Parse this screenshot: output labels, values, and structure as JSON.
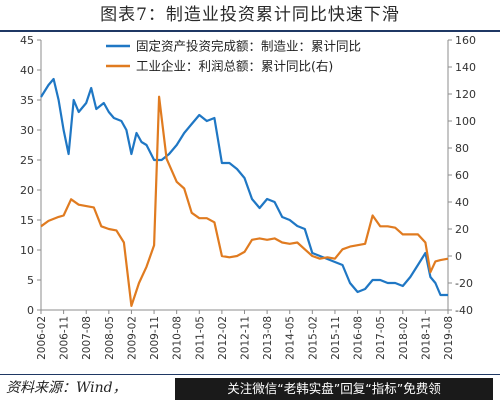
{
  "title": "图表7：制造业投资累计同比快速下滑",
  "source": "资料来源：Wind，",
  "promo_banner": "关注微信“老韩实盘”回复“指标”免费领",
  "colors": {
    "series1": "#1f77c4",
    "series2": "#e07b20",
    "axis": "#8c8c8c",
    "text": "#333333"
  },
  "chart_data": {
    "type": "line",
    "xlabel": "",
    "ylabel": "",
    "ylim_left": [
      0,
      45
    ],
    "ylim_right": [
      -40,
      160
    ],
    "yticks_left": [
      0,
      5,
      10,
      15,
      20,
      25,
      30,
      35,
      40,
      45
    ],
    "yticks_right": [
      -40,
      -20,
      0,
      20,
      40,
      60,
      80,
      100,
      120,
      140,
      160
    ],
    "x_range": [
      "2006-02",
      "2019-08"
    ],
    "xticks": [
      "2006-02",
      "2006-11",
      "2007-08",
      "2008-05",
      "2009-02",
      "2009-11",
      "2010-08",
      "2011-05",
      "2012-02",
      "2012-11",
      "2013-08",
      "2014-05",
      "2015-02",
      "2015-11",
      "2016-08",
      "2017-05",
      "2018-02",
      "2018-11",
      "2019-08"
    ],
    "legend_position": "top",
    "grid": false,
    "series": [
      {
        "name": "固定资产投资完成额：制造业：累计同比",
        "axis": "left",
        "points": [
          [
            "2006-02",
            35.5
          ],
          [
            "2006-05",
            37.5
          ],
          [
            "2006-07",
            38.5
          ],
          [
            "2006-09",
            35.0
          ],
          [
            "2006-11",
            30.0
          ],
          [
            "2007-01",
            26.0
          ],
          [
            "2007-03",
            35.0
          ],
          [
            "2007-05",
            33.0
          ],
          [
            "2007-08",
            34.5
          ],
          [
            "2007-10",
            37.0
          ],
          [
            "2007-12",
            33.5
          ],
          [
            "2008-03",
            34.5
          ],
          [
            "2008-05",
            33.0
          ],
          [
            "2008-07",
            32.0
          ],
          [
            "2008-10",
            31.5
          ],
          [
            "2008-12",
            30.0
          ],
          [
            "2009-02",
            26.0
          ],
          [
            "2009-04",
            29.5
          ],
          [
            "2009-06",
            28.0
          ],
          [
            "2009-08",
            27.5
          ],
          [
            "2009-11",
            25.0
          ],
          [
            "2010-02",
            25.0
          ],
          [
            "2010-05",
            26.0
          ],
          [
            "2010-08",
            27.5
          ],
          [
            "2010-11",
            29.5
          ],
          [
            "2011-02",
            31.0
          ],
          [
            "2011-05",
            32.5
          ],
          [
            "2011-08",
            31.5
          ],
          [
            "2011-11",
            32.0
          ],
          [
            "2012-02",
            24.5
          ],
          [
            "2012-05",
            24.5
          ],
          [
            "2012-08",
            23.5
          ],
          [
            "2012-11",
            22.0
          ],
          [
            "2013-02",
            18.5
          ],
          [
            "2013-05",
            17.0
          ],
          [
            "2013-08",
            18.5
          ],
          [
            "2013-11",
            18.0
          ],
          [
            "2014-02",
            15.5
          ],
          [
            "2014-05",
            15.0
          ],
          [
            "2014-08",
            14.0
          ],
          [
            "2014-11",
            13.5
          ],
          [
            "2015-02",
            9.5
          ],
          [
            "2015-05",
            9.0
          ],
          [
            "2015-08",
            8.5
          ],
          [
            "2015-11",
            8.0
          ],
          [
            "2016-02",
            7.5
          ],
          [
            "2016-05",
            4.5
          ],
          [
            "2016-08",
            3.0
          ],
          [
            "2016-11",
            3.5
          ],
          [
            "2017-02",
            5.0
          ],
          [
            "2017-05",
            5.0
          ],
          [
            "2017-08",
            4.5
          ],
          [
            "2017-11",
            4.5
          ],
          [
            "2018-02",
            4.0
          ],
          [
            "2018-05",
            5.5
          ],
          [
            "2018-08",
            7.5
          ],
          [
            "2018-11",
            9.5
          ],
          [
            "2019-01",
            5.5
          ],
          [
            "2019-03",
            4.5
          ],
          [
            "2019-05",
            2.5
          ],
          [
            "2019-08",
            2.5
          ]
        ]
      },
      {
        "name": "工业企业：利润总额：累计同比(右)",
        "axis": "right",
        "points": [
          [
            "2006-02",
            22
          ],
          [
            "2006-05",
            26
          ],
          [
            "2006-09",
            29
          ],
          [
            "2006-11",
            30
          ],
          [
            "2007-02",
            42
          ],
          [
            "2007-05",
            38
          ],
          [
            "2007-08",
            37
          ],
          [
            "2007-11",
            36
          ],
          [
            "2008-02",
            22
          ],
          [
            "2008-05",
            20
          ],
          [
            "2008-08",
            19
          ],
          [
            "2008-11",
            10
          ],
          [
            "2009-02",
            -37
          ],
          [
            "2009-05",
            -20
          ],
          [
            "2009-08",
            -8
          ],
          [
            "2009-11",
            8
          ],
          [
            "2010-01",
            118
          ],
          [
            "2010-04",
            72
          ],
          [
            "2010-08",
            55
          ],
          [
            "2010-11",
            50
          ],
          [
            "2011-02",
            32
          ],
          [
            "2011-05",
            28
          ],
          [
            "2011-08",
            28
          ],
          [
            "2011-11",
            25
          ],
          [
            "2012-02",
            0
          ],
          [
            "2012-05",
            -1
          ],
          [
            "2012-08",
            0
          ],
          [
            "2012-11",
            3
          ],
          [
            "2013-02",
            12
          ],
          [
            "2013-05",
            13
          ],
          [
            "2013-08",
            12
          ],
          [
            "2013-11",
            13
          ],
          [
            "2014-02",
            10
          ],
          [
            "2014-05",
            9
          ],
          [
            "2014-08",
            10
          ],
          [
            "2014-11",
            5
          ],
          [
            "2015-02",
            0
          ],
          [
            "2015-05",
            -2
          ],
          [
            "2015-08",
            -1
          ],
          [
            "2015-11",
            -2
          ],
          [
            "2016-02",
            5
          ],
          [
            "2016-05",
            7
          ],
          [
            "2016-08",
            8
          ],
          [
            "2016-11",
            9
          ],
          [
            "2017-02",
            30
          ],
          [
            "2017-05",
            22
          ],
          [
            "2017-08",
            22
          ],
          [
            "2017-11",
            21
          ],
          [
            "2018-02",
            16
          ],
          [
            "2018-05",
            16
          ],
          [
            "2018-08",
            16
          ],
          [
            "2018-11",
            10
          ],
          [
            "2019-01",
            -12
          ],
          [
            "2019-03",
            -4
          ],
          [
            "2019-05",
            -3
          ],
          [
            "2019-08",
            -2
          ]
        ]
      }
    ]
  }
}
